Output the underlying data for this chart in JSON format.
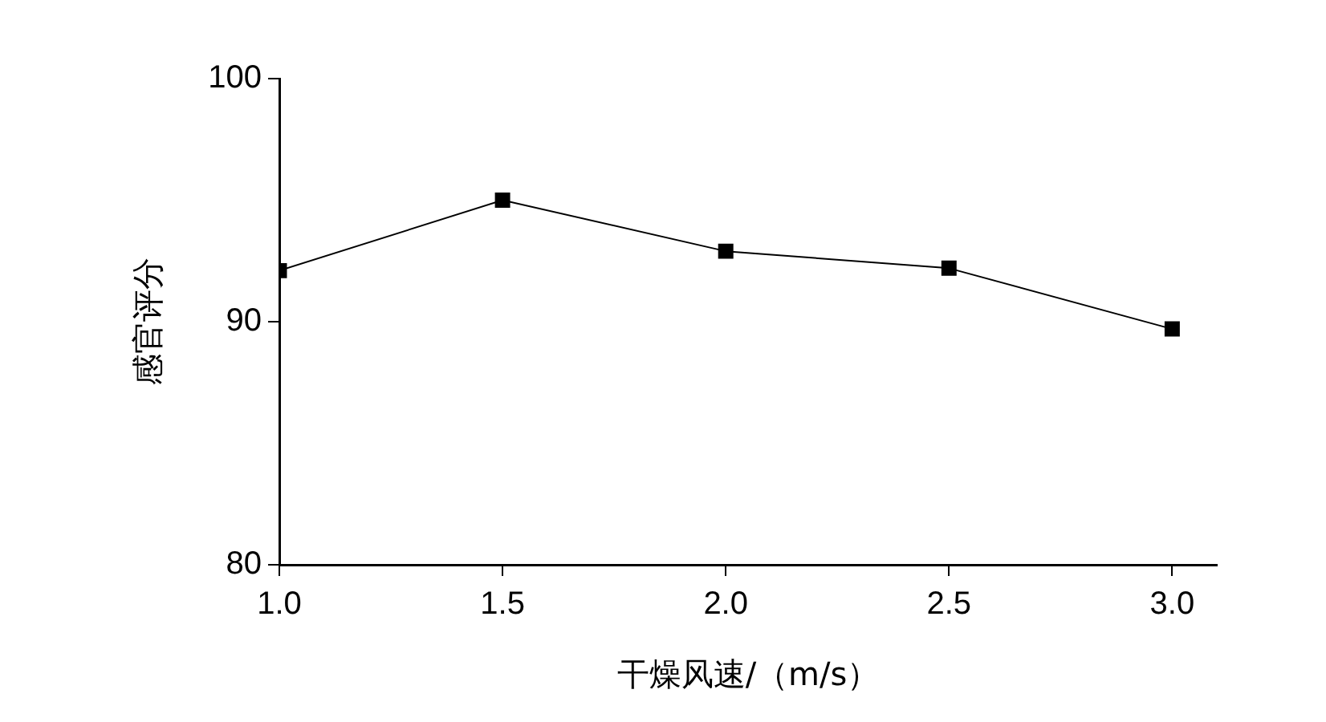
{
  "chart_data": {
    "type": "line",
    "xlabel": "干燥风速/（m/s）",
    "ylabel": "感官评分",
    "x": [
      1.0,
      1.5,
      2.0,
      2.5,
      3.0
    ],
    "series": [
      {
        "color": "#000000",
        "values": [
          92.1,
          95.0,
          92.9,
          92.2,
          89.7
        ]
      }
    ],
    "xlim": [
      1.0,
      3.1
    ],
    "xticks": [
      {
        "value": 1,
        "label": "1.0"
      },
      {
        "value": 1.5,
        "label": "1.5"
      },
      {
        "value": 2,
        "label": "2.0"
      },
      {
        "value": 2.5,
        "label": "2.5"
      },
      {
        "value": 3,
        "label": "3.0"
      }
    ],
    "ylim": [
      80,
      100
    ],
    "yticks": [
      80,
      90,
      100
    ],
    "grid": false,
    "legend": false,
    "marker": "square",
    "line_style": "solid"
  }
}
